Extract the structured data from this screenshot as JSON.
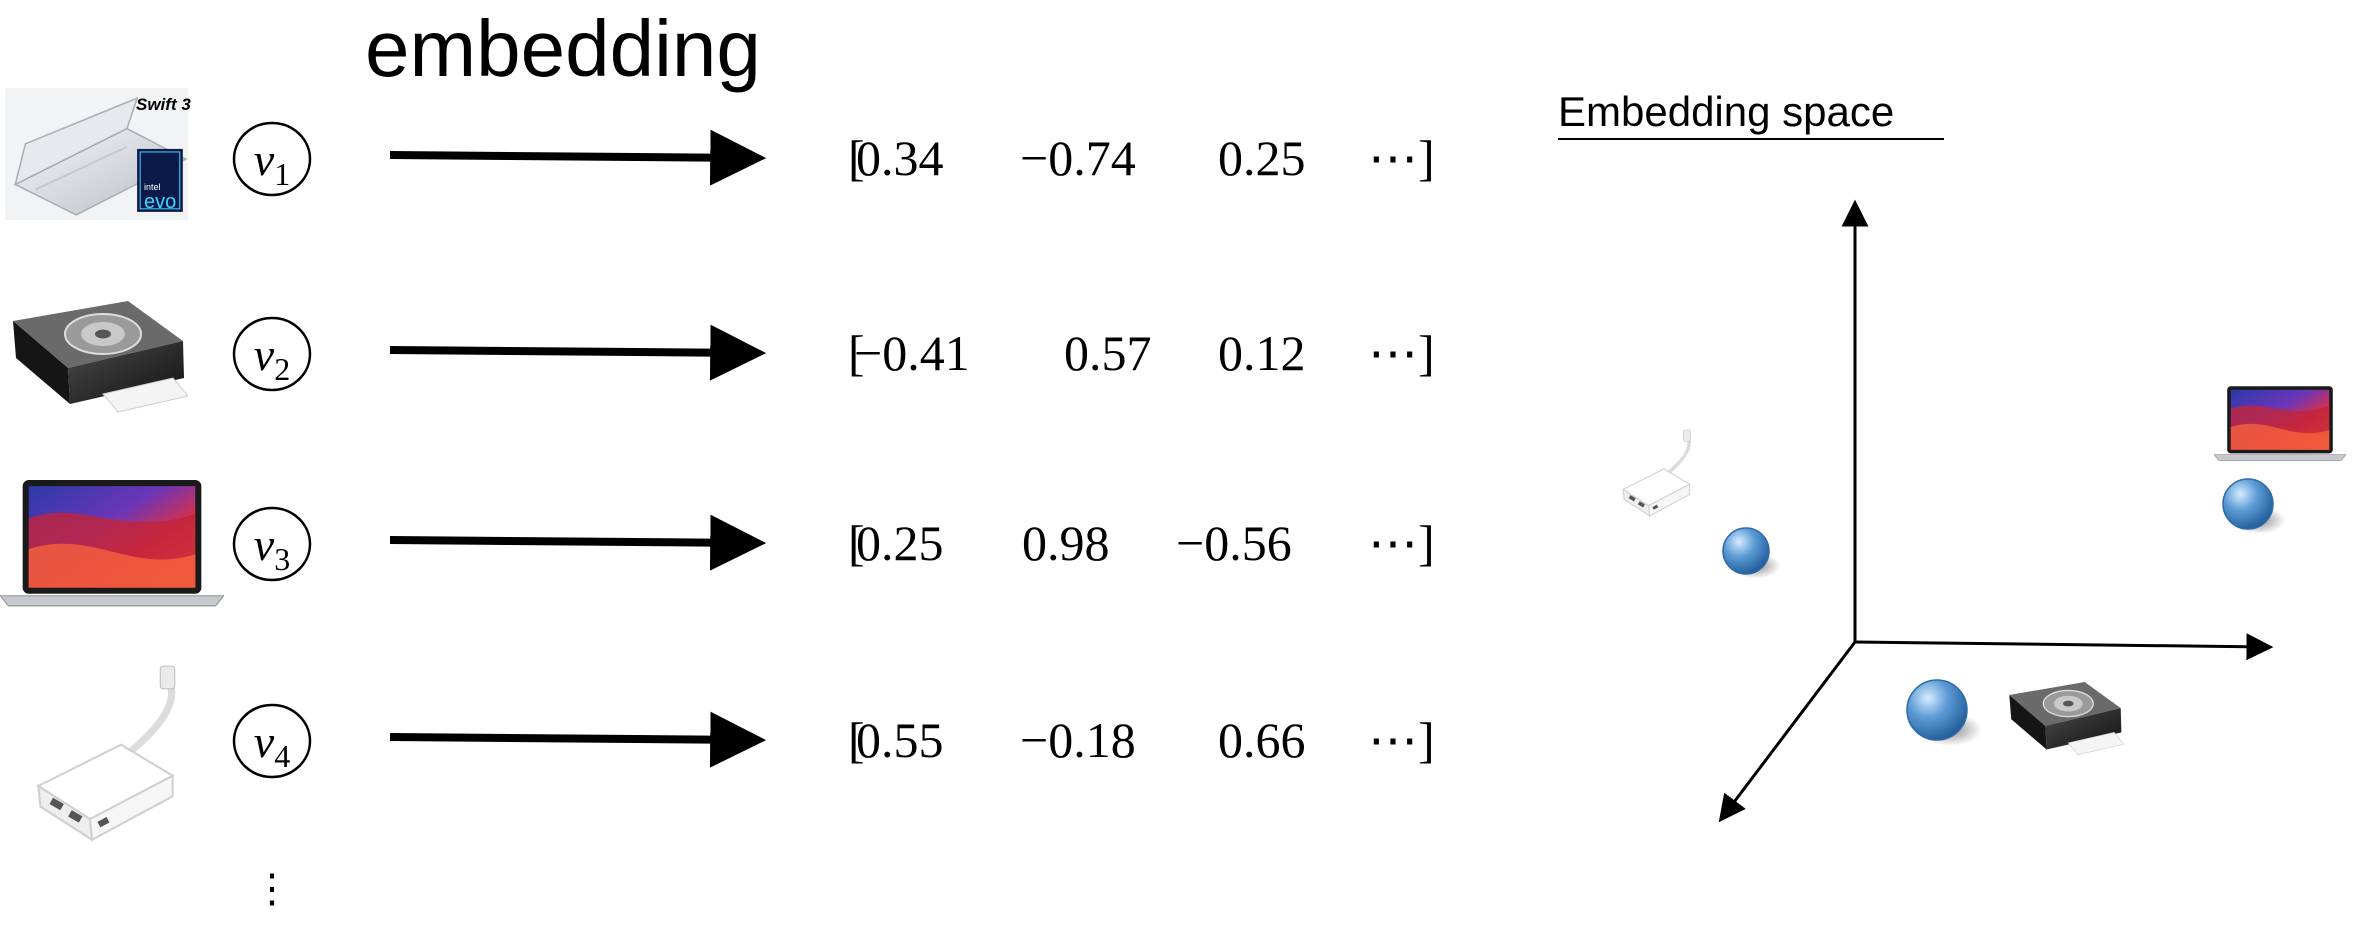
{
  "title": "embedding",
  "space_title": "Embedding space",
  "product_icons": {
    "laptop_silver": "laptop-silver-icon",
    "camera": "instant-camera-icon",
    "laptop_macbook": "macbook-icon",
    "adapter": "usb-c-adapter-icon"
  },
  "product_text": {
    "brand": "Swift 3",
    "badge_small": "intel",
    "badge_main": "evo"
  },
  "rows": [
    {
      "variable": "v",
      "subscript": "1",
      "values": [
        "0.34",
        "−0.74",
        "0.25"
      ],
      "ellipsis": "⋯",
      "open_bracket": "[",
      "close_bracket": "]",
      "icon": "laptop-silver-icon"
    },
    {
      "variable": "v",
      "subscript": "2",
      "values": [
        "−0.41",
        "0.57",
        "0.12"
      ],
      "ellipsis": "⋯",
      "open_bracket": "[",
      "close_bracket": "]",
      "icon": "instant-camera-icon"
    },
    {
      "variable": "v",
      "subscript": "3",
      "values": [
        "0.25",
        "0.98",
        "−0.56"
      ],
      "ellipsis": "⋯",
      "open_bracket": "[",
      "close_bracket": "]",
      "icon": "macbook-icon"
    },
    {
      "variable": "v",
      "subscript": "4",
      "values": [
        "0.55",
        "−0.18",
        "0.66"
      ],
      "ellipsis": "⋯",
      "open_bracket": "[",
      "close_bracket": "]",
      "icon": "usb-c-adapter-icon"
    }
  ],
  "more_rows": "⋮",
  "space_points": [
    {
      "icon": "usb-c-adapter-icon"
    },
    {
      "icon": "macbook-icon"
    },
    {
      "icon": "instant-camera-icon"
    }
  ],
  "colors": {
    "sphere": "#5b9bd5",
    "sphere_dark": "#2e6aa8",
    "ink": "#000000"
  }
}
